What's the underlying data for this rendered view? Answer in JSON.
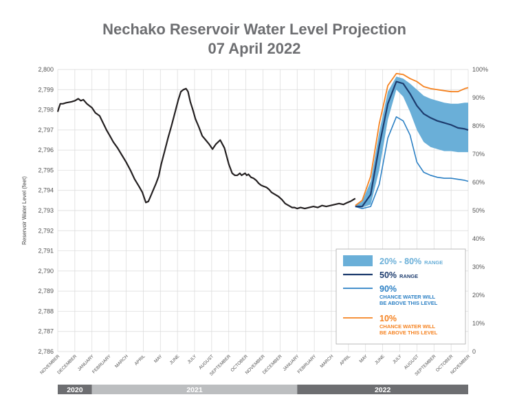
{
  "chart_data": {
    "type": "line",
    "title": "Nechako Reservoir Water Level Projection",
    "subtitle": "07 April 2022",
    "ylabel": "Reservoir Water Level (feet)",
    "ylim": [
      2786,
      2800
    ],
    "yticks": [
      "2,786",
      "2,787",
      "2,788",
      "2,789",
      "2,790",
      "2,791",
      "2,792",
      "2,793",
      "2,794",
      "2,795",
      "2,796",
      "2,797",
      "2,798",
      "2,799",
      "2,800"
    ],
    "y2lim": [
      0,
      100
    ],
    "y2ticks": [
      "0",
      "10%",
      "20%",
      "30%",
      "40%",
      "50%",
      "60%",
      "70%",
      "80%",
      "90%",
      "100%"
    ],
    "months": [
      "NOVEMBER",
      "DECEMBER",
      "JANUARY",
      "FEBRUARY",
      "MARCH",
      "APRIL",
      "MAY",
      "JUNE",
      "JULY",
      "AUGUST",
      "SEPTEMBER",
      "OCTOBER",
      "NOVEMBER",
      "DECEMBER",
      "JANUARY",
      "FEBRUARY",
      "MARCH",
      "APRIL",
      "MAY",
      "JUNE",
      "JULY",
      "AUGUST",
      "SEPTEMBER",
      "OCTOBER",
      "NOVEMBER"
    ],
    "years": [
      {
        "label": "2020",
        "start": 0,
        "end": 2,
        "color": "#6d6e71"
      },
      {
        "label": "2021",
        "start": 2,
        "end": 14,
        "color": "#bcbec0"
      },
      {
        "label": "2022",
        "start": 14,
        "end": 24,
        "color": "#6d6e71"
      }
    ],
    "grid": true,
    "legend_position": "bottom-right",
    "legend": {
      "range": {
        "big": "20% - 80%",
        "small": "RANGE",
        "color": "#6aafd8"
      },
      "p50": {
        "big": "50%",
        "small": "RANGE",
        "color": "#1d3c6e"
      },
      "p90": {
        "big": "90%",
        "small1": "CHANCE WATER WILL",
        "small2": "BE ABOVE THIS LEVEL",
        "color": "#2a7fc4"
      },
      "p10": {
        "big": "10%",
        "small1": "CHANCE WATER WILL",
        "small2": "BE ABOVE THIS LEVEL",
        "color": "#f58220"
      }
    },
    "historical": {
      "name": "Historical",
      "color": "#231f20",
      "x": [
        0,
        0.05,
        0.15,
        0.3,
        0.5,
        0.8,
        1,
        1.2,
        1.35,
        1.5,
        1.7,
        2,
        2.2,
        2.45,
        2.65,
        2.85,
        3.05,
        3.25,
        3.5,
        3.75,
        4,
        4.25,
        4.5,
        4.75,
        4.95,
        5.15,
        5.3,
        5.45,
        5.6,
        5.75,
        5.9,
        6.05,
        6.25,
        6.45,
        6.65,
        6.85,
        7.05,
        7.2,
        7.35,
        7.5,
        7.62,
        7.75,
        7.9,
        8.05,
        8.25,
        8.45,
        8.65,
        8.85,
        9.05,
        9.25,
        9.5,
        9.75,
        10,
        10.2,
        10.35,
        10.5,
        10.65,
        10.75,
        10.85,
        10.95,
        11.05,
        11.15,
        11.3,
        11.45,
        11.6,
        11.75,
        11.9,
        12.05,
        12.2,
        12.35,
        12.5,
        12.7,
        12.9,
        13.1,
        13.3,
        13.5,
        13.7,
        13.85,
        14,
        14.2,
        14.45,
        14.7,
        14.95,
        15.2,
        15.45,
        15.7,
        15.95,
        16.2,
        16.45,
        16.7,
        16.95,
        17.1,
        17.2,
        17.3,
        17.4
      ],
      "y": [
        2797.9,
        2798.05,
        2798.3,
        2798.3,
        2798.35,
        2798.4,
        2798.45,
        2798.55,
        2798.45,
        2798.5,
        2798.3,
        2798.1,
        2797.85,
        2797.7,
        2797.35,
        2797.0,
        2796.7,
        2796.4,
        2796.1,
        2795.75,
        2795.4,
        2795.0,
        2794.55,
        2794.2,
        2793.9,
        2793.4,
        2793.45,
        2793.75,
        2794.05,
        2794.35,
        2794.7,
        2795.3,
        2795.95,
        2796.6,
        2797.2,
        2797.85,
        2798.5,
        2798.9,
        2799.0,
        2799.05,
        2798.9,
        2798.4,
        2798.0,
        2797.55,
        2797.15,
        2796.7,
        2796.5,
        2796.3,
        2796.05,
        2796.3,
        2796.5,
        2796.1,
        2795.3,
        2794.85,
        2794.75,
        2794.75,
        2794.85,
        2794.75,
        2794.8,
        2794.85,
        2794.75,
        2794.8,
        2794.65,
        2794.6,
        2794.5,
        2794.35,
        2794.25,
        2794.2,
        2794.15,
        2794.05,
        2793.9,
        2793.8,
        2793.7,
        2793.55,
        2793.35,
        2793.25,
        2793.15,
        2793.15,
        2793.1,
        2793.15,
        2793.1,
        2793.15,
        2793.2,
        2793.15,
        2793.25,
        2793.2,
        2793.25,
        2793.3,
        2793.35,
        2793.3,
        2793.4,
        2793.45,
        2793.5,
        2793.55,
        2793.6
      ]
    },
    "projection_x": [
      17.4,
      17.8,
      18.3,
      18.8,
      19.3,
      19.8,
      20.2,
      20.6,
      21.0,
      21.4,
      21.8,
      22.2,
      22.6,
      23.0,
      23.4,
      23.8,
      24.0
    ],
    "p10": {
      "color": "#f58220",
      "y": [
        2793.25,
        2793.5,
        2794.7,
        2797.3,
        2799.2,
        2799.8,
        2799.75,
        2799.55,
        2799.4,
        2799.15,
        2799.05,
        2799.0,
        2798.95,
        2798.9,
        2798.9,
        2799.05,
        2799.1
      ]
    },
    "range_upper": {
      "y": [
        2793.25,
        2793.45,
        2794.45,
        2796.9,
        2798.9,
        2799.65,
        2799.55,
        2799.3,
        2799.0,
        2798.7,
        2798.55,
        2798.45,
        2798.35,
        2798.3,
        2798.3,
        2798.35,
        2798.35
      ]
    },
    "p50": {
      "color": "#1d3c6e",
      "y": [
        2793.2,
        2793.2,
        2793.8,
        2796.2,
        2798.3,
        2799.4,
        2799.3,
        2798.8,
        2798.2,
        2797.8,
        2797.6,
        2797.45,
        2797.35,
        2797.25,
        2797.1,
        2797.05,
        2797.0
      ]
    },
    "range_lower": {
      "y": [
        2793.2,
        2793.15,
        2793.3,
        2795.0,
        2797.5,
        2799.0,
        2798.65,
        2797.9,
        2797.0,
        2796.4,
        2796.15,
        2796.05,
        2795.95,
        2795.95,
        2795.9,
        2795.9,
        2795.9
      ]
    },
    "p90": {
      "color": "#2a7fc4",
      "y": [
        2793.2,
        2793.1,
        2793.2,
        2794.3,
        2796.6,
        2797.65,
        2797.45,
        2796.75,
        2795.4,
        2794.9,
        2794.75,
        2794.65,
        2794.6,
        2794.6,
        2794.55,
        2794.5,
        2794.45
      ]
    }
  }
}
